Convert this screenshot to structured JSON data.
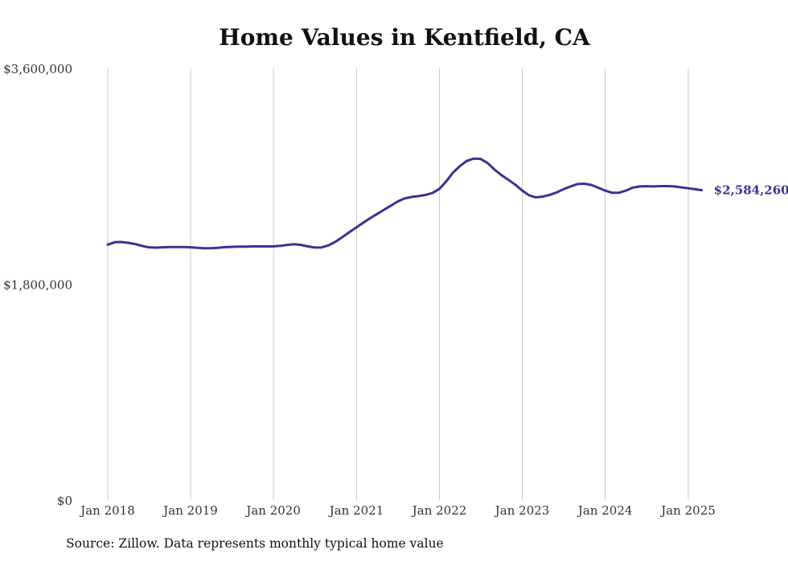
{
  "chart_data": {
    "type": "line",
    "title": "Home Values in Kentfield, CA",
    "xlabel": "",
    "ylabel": "",
    "ylim": [
      0,
      3600000
    ],
    "y_ticks": [
      "$3,600,000",
      "$1,800,000",
      "$0"
    ],
    "y_tick_values": [
      3600000,
      1800000,
      0
    ],
    "x_ticks": [
      "Jan 2018",
      "Jan 2019",
      "Jan 2020",
      "Jan 2021",
      "Jan 2022",
      "Jan 2023",
      "Jan 2024",
      "Jan 2025"
    ],
    "x_tick_dates": [
      "2018-01",
      "2019-01",
      "2020-01",
      "2021-01",
      "2022-01",
      "2023-01",
      "2024-01",
      "2025-01"
    ],
    "grid": "vertical",
    "end_label": "$2,584,260",
    "colors": {
      "line": "#3a3391",
      "grid": "#c8c8c8"
    },
    "series": [
      {
        "values": [
          [
            "2018-01",
            2130000
          ],
          [
            "2018-02",
            2150000
          ],
          [
            "2018-03",
            2152000
          ],
          [
            "2018-04",
            2145000
          ],
          [
            "2018-05",
            2135000
          ],
          [
            "2018-06",
            2120000
          ],
          [
            "2018-07",
            2108000
          ],
          [
            "2018-08",
            2105000
          ],
          [
            "2018-09",
            2108000
          ],
          [
            "2018-10",
            2110000
          ],
          [
            "2018-11",
            2110000
          ],
          [
            "2018-12",
            2110000
          ],
          [
            "2019-01",
            2108000
          ],
          [
            "2019-02",
            2103000
          ],
          [
            "2019-03",
            2100000
          ],
          [
            "2019-04",
            2100000
          ],
          [
            "2019-05",
            2104000
          ],
          [
            "2019-06",
            2109000
          ],
          [
            "2019-07",
            2112000
          ],
          [
            "2019-08",
            2113000
          ],
          [
            "2019-09",
            2114000
          ],
          [
            "2019-10",
            2115000
          ],
          [
            "2019-11",
            2115000
          ],
          [
            "2019-12",
            2115000
          ],
          [
            "2020-01",
            2116000
          ],
          [
            "2020-02",
            2120000
          ],
          [
            "2020-03",
            2128000
          ],
          [
            "2020-04",
            2133000
          ],
          [
            "2020-05",
            2128000
          ],
          [
            "2020-06",
            2115000
          ],
          [
            "2020-07",
            2106000
          ],
          [
            "2020-08",
            2107000
          ],
          [
            "2020-09",
            2125000
          ],
          [
            "2020-10",
            2155000
          ],
          [
            "2020-11",
            2195000
          ],
          [
            "2020-12",
            2235000
          ],
          [
            "2021-01",
            2275000
          ],
          [
            "2021-02",
            2315000
          ],
          [
            "2021-03",
            2350000
          ],
          [
            "2021-04",
            2385000
          ],
          [
            "2021-05",
            2420000
          ],
          [
            "2021-06",
            2455000
          ],
          [
            "2021-07",
            2490000
          ],
          [
            "2021-08",
            2515000
          ],
          [
            "2021-09",
            2528000
          ],
          [
            "2021-10",
            2535000
          ],
          [
            "2021-11",
            2545000
          ],
          [
            "2021-12",
            2560000
          ],
          [
            "2022-01",
            2595000
          ],
          [
            "2022-02",
            2660000
          ],
          [
            "2022-03",
            2730000
          ],
          [
            "2022-04",
            2785000
          ],
          [
            "2022-05",
            2828000
          ],
          [
            "2022-06",
            2848000
          ],
          [
            "2022-07",
            2845000
          ],
          [
            "2022-08",
            2810000
          ],
          [
            "2022-09",
            2755000
          ],
          [
            "2022-10",
            2710000
          ],
          [
            "2022-11",
            2670000
          ],
          [
            "2022-12",
            2630000
          ],
          [
            "2023-01",
            2580000
          ],
          [
            "2023-02",
            2540000
          ],
          [
            "2023-03",
            2525000
          ],
          [
            "2023-04",
            2530000
          ],
          [
            "2023-05",
            2545000
          ],
          [
            "2023-06",
            2565000
          ],
          [
            "2023-07",
            2592000
          ],
          [
            "2023-08",
            2615000
          ],
          [
            "2023-09",
            2635000
          ],
          [
            "2023-10",
            2638000
          ],
          [
            "2023-11",
            2628000
          ],
          [
            "2023-12",
            2605000
          ],
          [
            "2024-01",
            2580000
          ],
          [
            "2024-02",
            2562000
          ],
          [
            "2024-03",
            2562000
          ],
          [
            "2024-04",
            2580000
          ],
          [
            "2024-05",
            2605000
          ],
          [
            "2024-06",
            2615000
          ],
          [
            "2024-07",
            2617000
          ],
          [
            "2024-08",
            2615000
          ],
          [
            "2024-09",
            2618000
          ],
          [
            "2024-10",
            2618000
          ],
          [
            "2024-11",
            2615000
          ],
          [
            "2024-12",
            2608000
          ],
          [
            "2025-01",
            2600000
          ],
          [
            "2025-02",
            2592000
          ],
          [
            "2025-03",
            2584260
          ]
        ]
      }
    ]
  },
  "source_note": "Source: Zillow. Data represents monthly typical home value"
}
